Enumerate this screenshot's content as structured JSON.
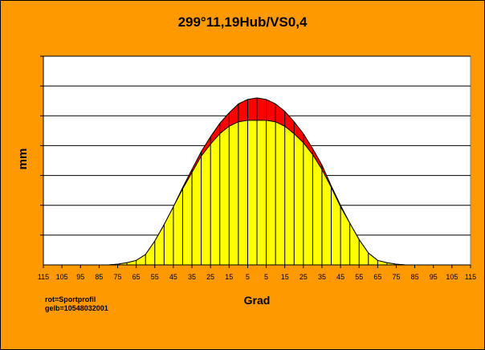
{
  "chart_data": {
    "type": "area",
    "title": "299°11,19Hub/VS0,4",
    "xlabel": "Grad",
    "ylabel": "mm",
    "x_tick_labels": [
      "115",
      "105",
      "95",
      "85",
      "75",
      "65",
      "55",
      "45",
      "35",
      "25",
      "15",
      "5",
      "5",
      "15",
      "25",
      "35",
      "45",
      "55",
      "65",
      "75",
      "85",
      "95",
      "105",
      "115"
    ],
    "x_ticks": [
      -115,
      -105,
      -95,
      -85,
      -75,
      -65,
      -55,
      -45,
      -35,
      -25,
      -15,
      -5,
      5,
      15,
      25,
      35,
      45,
      55,
      65,
      75,
      85,
      95,
      105,
      115
    ],
    "xlim": [
      -115,
      115
    ],
    "ylim": [
      0,
      14
    ],
    "y_gridlines": [
      2,
      4,
      6,
      8,
      10,
      12,
      14
    ],
    "grid": true,
    "x": [
      -115,
      -110,
      -105,
      -100,
      -95,
      -90,
      -85,
      -80,
      -75,
      -70,
      -65,
      -60,
      -55,
      -50,
      -45,
      -40,
      -35,
      -30,
      -25,
      -20,
      -15,
      -10,
      -5,
      0,
      5,
      10,
      15,
      20,
      25,
      30,
      35,
      40,
      45,
      50,
      55,
      60,
      65,
      70,
      75,
      80,
      85,
      90,
      95,
      100,
      105,
      110,
      115
    ],
    "series": [
      {
        "name": "rot=Sportprofil",
        "color": "#ff0000",
        "values": [
          0,
          0,
          0,
          0,
          0,
          0,
          0,
          0,
          0.05,
          0.15,
          0.3,
          0.7,
          1.6,
          2.7,
          3.9,
          5.2,
          6.4,
          7.6,
          8.6,
          9.5,
          10.2,
          10.8,
          11.1,
          11.2,
          11.1,
          10.8,
          10.3,
          9.6,
          8.8,
          7.8,
          6.7,
          5.3,
          4.0,
          2.8,
          1.7,
          0.8,
          0.3,
          0.15,
          0.05,
          0,
          0,
          0,
          0,
          0,
          0,
          0,
          0
        ]
      },
      {
        "name": "gelb=10548032001",
        "color": "#ffff00",
        "values": [
          0,
          0,
          0,
          0,
          0,
          0,
          0,
          0,
          0.05,
          0.15,
          0.3,
          0.7,
          1.6,
          2.7,
          3.9,
          5.1,
          6.2,
          7.3,
          8.1,
          8.8,
          9.3,
          9.6,
          9.7,
          9.7,
          9.7,
          9.6,
          9.3,
          8.8,
          8.2,
          7.4,
          6.4,
          5.2,
          3.9,
          2.8,
          1.7,
          0.8,
          0.3,
          0.15,
          0.05,
          0,
          0,
          0,
          0,
          0,
          0,
          0,
          0
        ]
      }
    ],
    "legend": [
      "rot=Sportprofil",
      "gelb=10548032001"
    ],
    "legend_placement": "bottom-left"
  }
}
